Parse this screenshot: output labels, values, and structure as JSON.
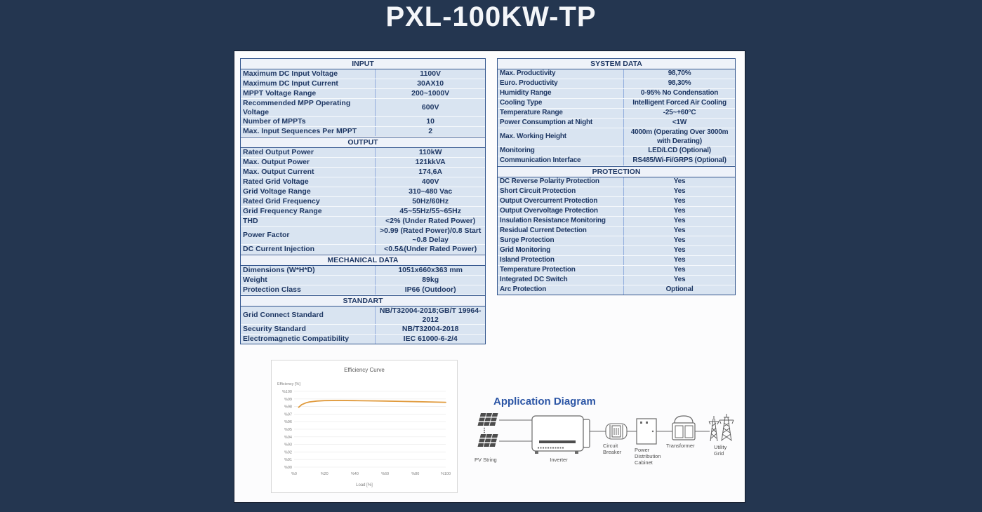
{
  "page_title": "PXL-100KW-TP",
  "colors": {
    "background": "#243650",
    "table_text": "#1f3864",
    "table_row_bg": "#d9e4f1",
    "table_header_bg": "#eef2f9",
    "diagram_title": "#2b55a5",
    "curve": "#E09A3C"
  },
  "tables": {
    "left": {
      "sections": [
        {
          "header": "INPUT",
          "rows": [
            [
              "Maximum DC Input Voltage",
              "1100V"
            ],
            [
              "Maximum DC Input Current",
              "30AX10"
            ],
            [
              "MPPT Voltage Range",
              "200~1000V"
            ],
            [
              "Recommended MPP Operating Voltage",
              "600V"
            ],
            [
              "Number of MPPTs",
              "10"
            ],
            [
              "Max. Input Sequences Per MPPT",
              "2"
            ]
          ]
        },
        {
          "header": "OUTPUT",
          "rows": [
            [
              "Rated Output Power",
              "110kW"
            ],
            [
              "Max. Output Power",
              "121kkVA"
            ],
            [
              "Max. Output Current",
              "174,6A"
            ],
            [
              "Rated Grid Voltage",
              "400V"
            ],
            [
              "Grid Voltage Range",
              "310~480 Vac"
            ],
            [
              "Rated Grid Frequency",
              "50Hz/60Hz"
            ],
            [
              "Grid Frequency Range",
              "45~55Hz/55~65Hz"
            ],
            [
              "THD",
              "<2% (Under Rated Power)"
            ],
            [
              "Power Factor",
              ">0.99 (Rated Power)/0.8 Start ~0.8 Delay"
            ],
            [
              "DC Current Injection",
              "<0.5&(Under Rated Power)"
            ]
          ]
        },
        {
          "header": "MECHANICAL DATA",
          "rows": [
            [
              "Dimensions (W*H*D)",
              "1051x660x363 mm"
            ],
            [
              "Weight",
              "89kg"
            ],
            [
              "Protection Class",
              "IP66 (Outdoor)"
            ]
          ]
        },
        {
          "header": "STANDART",
          "rows": [
            [
              "Grid Connect Standard",
              "NB/T32004-2018;GB/T 19964-2012"
            ],
            [
              "Security Standard",
              "NB/T32004-2018"
            ],
            [
              "Electromagnetic Compatibility",
              "IEC 61000-6-2/4"
            ]
          ]
        }
      ]
    },
    "right": {
      "sections": [
        {
          "header": "SYSTEM DATA",
          "rows": [
            [
              "Max. Productivity",
              "98,70%"
            ],
            [
              "Euro. Productivity",
              "98,30%"
            ],
            [
              "Humidity Range",
              "0-95% No Condensation"
            ],
            [
              "Cooling Type",
              "Intelligent Forced Air Cooling"
            ],
            [
              "Temperature Range",
              "-25~+60°C"
            ],
            [
              "Power Consumption at Night",
              "<1W"
            ],
            [
              "Max. Working Height",
              "4000m (Operating Over 3000m with Derating)"
            ],
            [
              "Monitoring",
              "LED/LCD (Optional)"
            ],
            [
              "Communication Interface",
              "RS485/Wi-Fi/GRPS (Optional)"
            ]
          ]
        },
        {
          "header": "PROTECTION",
          "rows": [
            [
              "DC Reverse Polarity Protection",
              "Yes"
            ],
            [
              "Short Circuit Protection",
              "Yes"
            ],
            [
              "Output Overcurrent Protection",
              "Yes"
            ],
            [
              "Output Overvoltage Protection",
              "Yes"
            ],
            [
              "Insulation Resistance Monitoring",
              "Yes"
            ],
            [
              "Residual Current Detection",
              "Yes"
            ],
            [
              "Surge Protection",
              "Yes"
            ],
            [
              "Grid Monitoring",
              "Yes"
            ],
            [
              "Island Protection",
              "Yes"
            ],
            [
              "Temperature Protection",
              "Yes"
            ],
            [
              "Integrated DC Switch",
              "Yes"
            ],
            [
              "Arc Protection",
              "Optional"
            ]
          ]
        }
      ]
    }
  },
  "chart_data": {
    "type": "line",
    "title": "Efficiency Curve",
    "xlabel": "Load [%]",
    "ylabel": "Efficiency [%]",
    "x": [
      3,
      5,
      8,
      10,
      15,
      20,
      30,
      40,
      50,
      60,
      70,
      80,
      90,
      100
    ],
    "y": [
      97.9,
      98.25,
      98.5,
      98.6,
      98.72,
      98.78,
      98.8,
      98.78,
      98.75,
      98.72,
      98.68,
      98.64,
      98.6,
      98.55
    ],
    "xlim": [
      0,
      100
    ],
    "ylim": [
      90,
      100
    ],
    "xtick_values": [
      0,
      20,
      40,
      60,
      80,
      100
    ],
    "xtick_labels": [
      "%0",
      "%20",
      "%40",
      "%60",
      "%80",
      "%100"
    ],
    "ytick_values": [
      90,
      91,
      92,
      93,
      94,
      95,
      96,
      97,
      98,
      99,
      100
    ],
    "ytick_labels": [
      "%90",
      "%91",
      "%92",
      "%93",
      "%94",
      "%95",
      "%96",
      "%97",
      "%98",
      "%99",
      "%100"
    ],
    "grid": true,
    "legend": "none",
    "line_color": "#E09A3C"
  },
  "diagram": {
    "title": "Application Diagram",
    "components": [
      {
        "name": "pv-string",
        "label": "PV String"
      },
      {
        "name": "inverter",
        "label": "Inverter"
      },
      {
        "name": "circuit-breaker",
        "label": "Circuit\nBreaker"
      },
      {
        "name": "power-distribution-cabinet",
        "label": "Power\nDistribution\nCabinet"
      },
      {
        "name": "transformer",
        "label": "Transformer"
      },
      {
        "name": "utility-grid",
        "label": "Utility\nGrid"
      }
    ]
  }
}
